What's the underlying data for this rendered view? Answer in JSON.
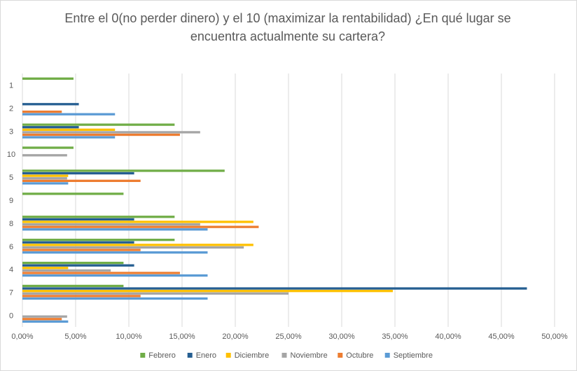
{
  "chart_data": {
    "type": "bar",
    "orientation": "horizontal",
    "title": "Entre el 0(no perder dinero) y el 10 (maximizar la rentabilidad) ¿En qué lugar se encuentra actualmente su cartera?",
    "categories": [
      "1",
      "2",
      "3",
      "10",
      "5",
      "9",
      "8",
      "6",
      "4",
      "7",
      "0"
    ],
    "xlim": [
      0,
      50
    ],
    "x_ticks": [
      "0,00%",
      "5,00%",
      "10,00%",
      "15,00%",
      "20,00%",
      "25,00%",
      "30,00%",
      "35,00%",
      "40,00%",
      "45,00%",
      "50,00%"
    ],
    "grid": "vertical",
    "legend_position": "bottom",
    "series": [
      {
        "name": "Febrero",
        "color": "#70AD47",
        "values": [
          4.8,
          0,
          14.3,
          4.8,
          19.0,
          9.5,
          14.3,
          14.3,
          9.5,
          9.5,
          0
        ]
      },
      {
        "name": "Enero",
        "color": "#255E91",
        "values": [
          0,
          5.3,
          5.3,
          0,
          10.5,
          0,
          10.5,
          10.5,
          10.5,
          47.4,
          0
        ]
      },
      {
        "name": "Diciembre",
        "color": "#FFC000",
        "values": [
          0,
          0,
          8.7,
          0,
          4.3,
          0,
          21.7,
          21.7,
          4.3,
          34.8,
          0
        ]
      },
      {
        "name": "Noviembre",
        "color": "#A5A5A5",
        "values": [
          0,
          0,
          16.7,
          4.2,
          4.2,
          0,
          16.7,
          20.8,
          8.3,
          25.0,
          4.2
        ]
      },
      {
        "name": "Octubre",
        "color": "#ED7D31",
        "values": [
          0,
          3.7,
          14.8,
          0,
          11.1,
          0,
          22.2,
          11.1,
          14.8,
          11.1,
          3.7
        ]
      },
      {
        "name": "Septiembre",
        "color": "#5B9BD5",
        "values": [
          0,
          8.7,
          8.7,
          0,
          4.3,
          0,
          17.4,
          17.4,
          17.4,
          17.4,
          4.3
        ]
      }
    ]
  }
}
